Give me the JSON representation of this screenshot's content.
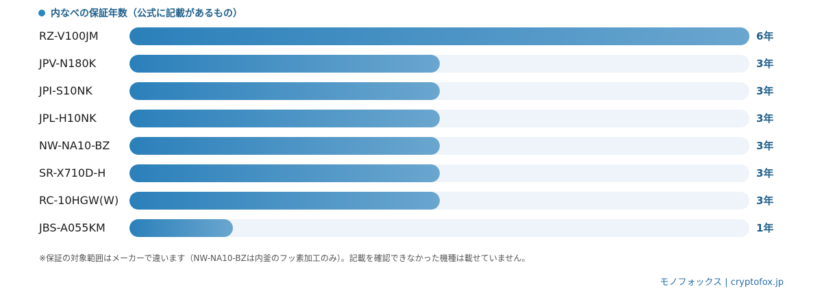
{
  "chart_data": {
    "type": "bar",
    "orientation": "horizontal",
    "title": "内なべの保証年数（公式に記載があるもの）",
    "categories": [
      "RZ-V100JM",
      "JPV-N180K",
      "JPI-S10NK",
      "JPL-H10NK",
      "NW-NA10-BZ",
      "SR-X710D-H",
      "RC-10HGW(W)",
      "JBS-A055KM"
    ],
    "values": [
      6,
      3,
      3,
      3,
      3,
      3,
      3,
      1
    ],
    "value_labels": [
      "6年",
      "3年",
      "3年",
      "3年",
      "3年",
      "3年",
      "3年",
      "1年"
    ],
    "xlim": [
      0,
      6
    ],
    "grid": false,
    "colors": {
      "bar_start": "#2b80ba",
      "bar_end": "#6aa6cf",
      "track": "#eef4fa",
      "value_text": "#1f5f8b"
    }
  },
  "note": "※保証の対象範囲はメーカーで違います（NW-NA10-BZは内釜のフッ素加工のみ）。記載を確認できなかった機種は載せていません。",
  "credit": "モノフォックス | cryptofox.jp"
}
